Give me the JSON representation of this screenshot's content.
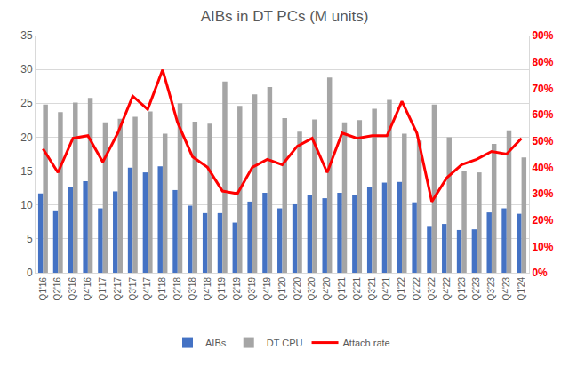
{
  "chart_data": {
    "type": "bar",
    "title": "AIBs in DT PCs (M units)",
    "categories": [
      "Q1'16",
      "Q2'16",
      "Q3'16",
      "Q4'16",
      "Q1'17",
      "Q2'17",
      "Q3'17",
      "Q4'17",
      "Q1'18",
      "Q2'18",
      "Q3'18",
      "Q4'18",
      "Q1'19",
      "Q2'19",
      "Q3'19",
      "Q4'19",
      "Q1'20",
      "Q2'20",
      "Q3'20",
      "Q4'20",
      "Q1'21",
      "Q2'21",
      "Q3'21",
      "Q4'21",
      "Q1'22",
      "Q2'22",
      "Q3'22",
      "Q4'22",
      "Q1'23",
      "Q2'23",
      "Q3'23",
      "Q4'23",
      "Q1'24"
    ],
    "series": [
      {
        "name": "AIBs",
        "type": "bar",
        "color": "#4472c4",
        "values": [
          11.7,
          9.2,
          12.7,
          13.5,
          9.5,
          12.0,
          15.5,
          14.8,
          15.7,
          12.2,
          9.9,
          8.8,
          8.8,
          7.4,
          10.5,
          11.8,
          9.5,
          10.1,
          11.5,
          11.0,
          11.8,
          11.5,
          12.7,
          13.3,
          13.4,
          10.4,
          6.9,
          7.2,
          6.3,
          6.4,
          8.9,
          9.5,
          8.7
        ]
      },
      {
        "name": "DT CPU",
        "type": "bar",
        "color": "#a5a5a5",
        "values": [
          24.8,
          23.7,
          25.1,
          25.8,
          22.2,
          22.7,
          23.0,
          23.8,
          20.5,
          25.0,
          22.3,
          22.0,
          28.2,
          24.6,
          26.3,
          27.4,
          22.8,
          20.8,
          22.6,
          28.8,
          22.2,
          22.5,
          24.2,
          25.5,
          20.5,
          19.5,
          24.8,
          20.0,
          15.0,
          14.8,
          19.0,
          21.0,
          17.0
        ]
      },
      {
        "name": "Attach rate",
        "type": "line",
        "color": "#ff0000",
        "axis": "y2",
        "values": [
          47,
          38,
          51,
          52,
          42,
          53,
          67,
          62,
          77,
          57,
          44,
          40,
          31,
          30,
          40,
          43,
          41,
          48,
          51,
          38,
          53,
          51,
          52,
          52,
          65,
          53,
          27,
          36,
          41,
          43,
          46,
          45,
          51
        ]
      }
    ],
    "ylim": [
      0,
      35
    ],
    "yticks": [
      0,
      5,
      10,
      15,
      20,
      25,
      30,
      35
    ],
    "y2lim": [
      0,
      90
    ],
    "y2ticks": [
      {
        "value": 0,
        "label": "0%"
      },
      {
        "value": 10,
        "label": "10%"
      },
      {
        "value": 20,
        "label": "20%"
      },
      {
        "value": 30,
        "label": "30%"
      },
      {
        "value": 40,
        "label": "40%"
      },
      {
        "value": 50,
        "label": "50%"
      },
      {
        "value": 60,
        "label": "60%"
      },
      {
        "value": 70,
        "label": "70%"
      },
      {
        "value": 80,
        "label": "80%"
      },
      {
        "value": 90,
        "label": "90%"
      }
    ],
    "grid": true,
    "legend": "bottom"
  }
}
